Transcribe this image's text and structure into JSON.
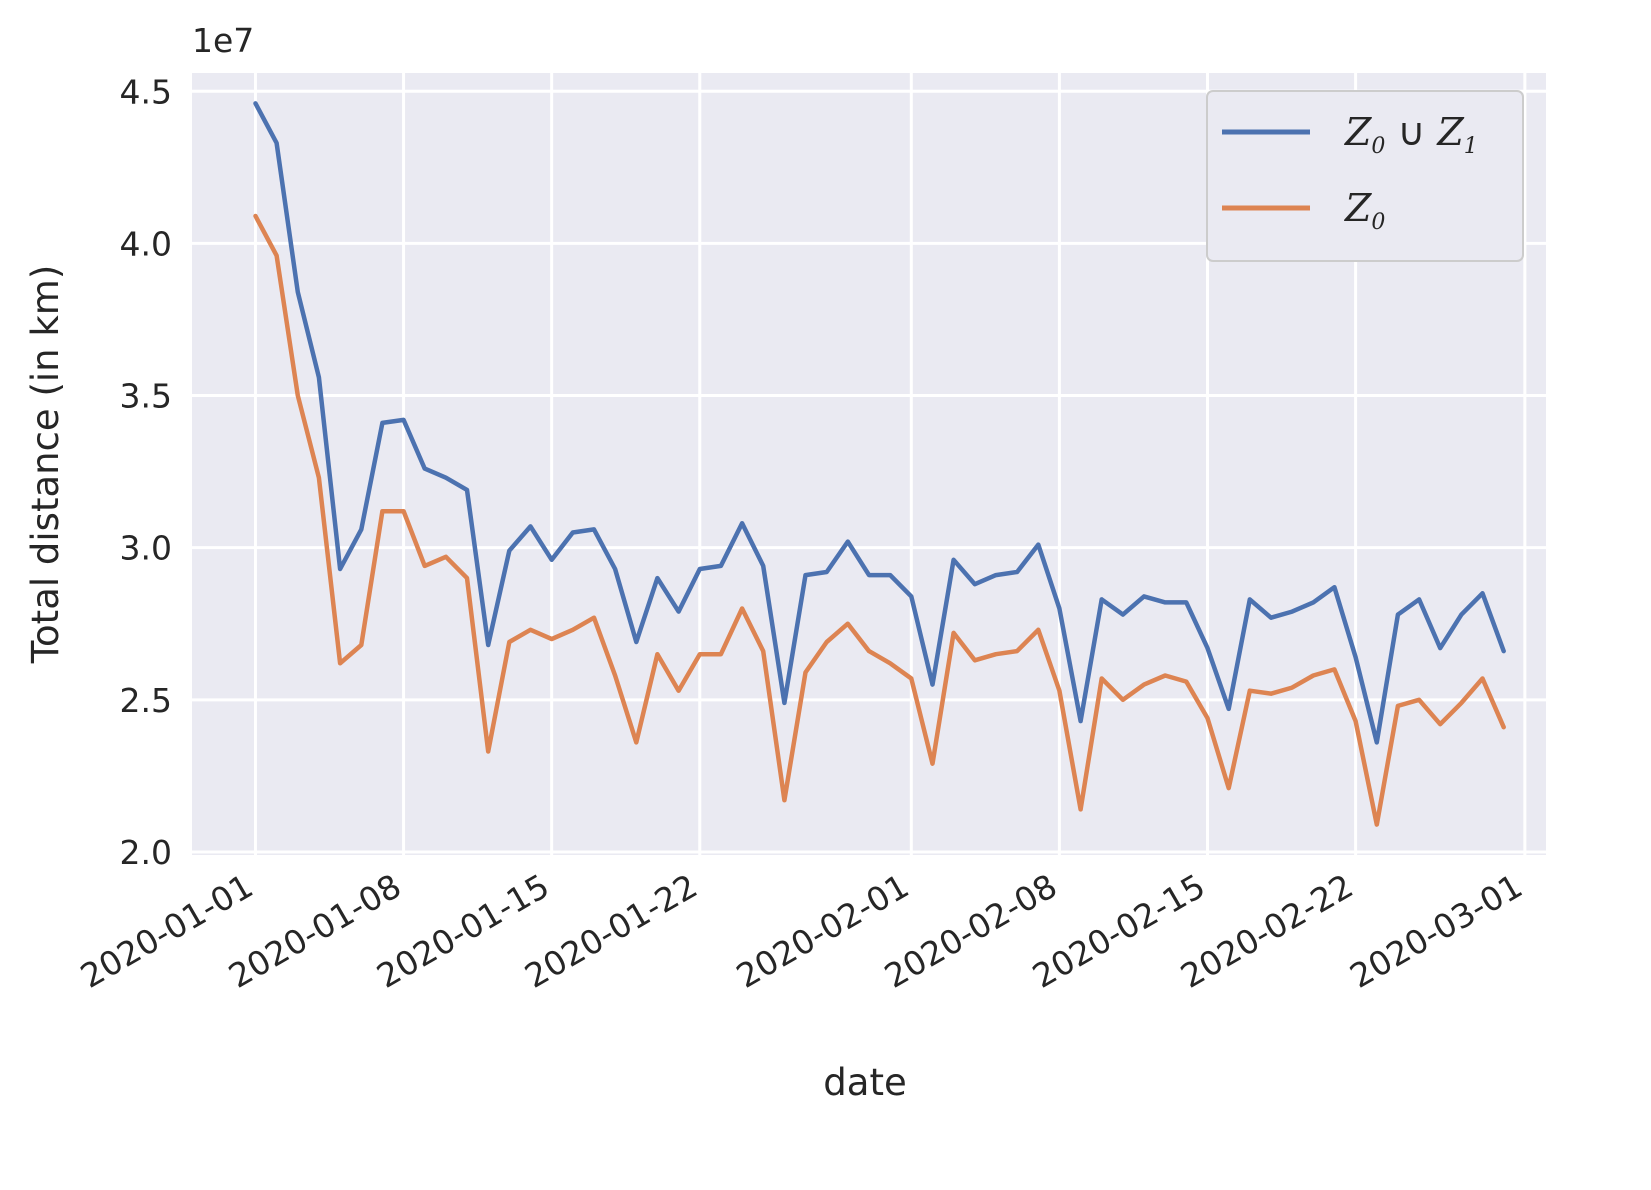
{
  "chart_data": {
    "type": "line",
    "xlabel": "date",
    "ylabel": "Total distance (in km)",
    "y_offset_text": "1e7",
    "x_start": "2020-01-01",
    "x_end": "2020-02-29",
    "xlim": [
      "2019-12-29",
      "2020-03-02"
    ],
    "ylim": [
      19900000.0,
      45600000.0
    ],
    "x_ticks": [
      "2020-01-01",
      "2020-01-08",
      "2020-01-15",
      "2020-01-22",
      "2020-02-01",
      "2020-02-08",
      "2020-02-15",
      "2020-02-22",
      "2020-03-01"
    ],
    "y_ticks": [
      {
        "value": 20000000.0,
        "label": "2.0"
      },
      {
        "value": 25000000.0,
        "label": "2.5"
      },
      {
        "value": 30000000.0,
        "label": "3.0"
      },
      {
        "value": 35000000.0,
        "label": "3.5"
      },
      {
        "value": 40000000.0,
        "label": "4.0"
      },
      {
        "value": 45000000.0,
        "label": "4.5"
      }
    ],
    "grid": true,
    "legend_position": "upper right",
    "series": [
      {
        "label_main": "Z",
        "label_sub": "0",
        "label_op": " ∪ ",
        "label_main2": "Z",
        "label_sub2": "1",
        "color": "#4c72b0",
        "values": [
          44.6,
          43.3,
          38.4,
          35.6,
          29.3,
          30.6,
          34.1,
          34.2,
          32.6,
          32.3,
          31.9,
          26.8,
          29.9,
          30.7,
          29.6,
          30.5,
          30.6,
          29.3,
          26.9,
          29.0,
          27.9,
          29.3,
          29.4,
          30.8,
          29.4,
          24.9,
          29.1,
          29.2,
          30.2,
          29.1,
          29.1,
          28.4,
          25.5,
          29.6,
          28.8,
          29.1,
          29.2,
          30.1,
          28.0,
          24.3,
          28.3,
          27.8,
          28.4,
          28.2,
          28.2,
          26.7,
          24.7,
          28.3,
          27.7,
          27.9,
          28.2,
          28.7,
          26.4,
          23.6,
          27.8,
          28.3,
          26.7,
          27.8,
          28.5,
          26.6
        ]
      },
      {
        "label_main": "Z",
        "label_sub": "0",
        "color": "#dd8452",
        "values": [
          40.9,
          39.6,
          35.0,
          32.3,
          26.2,
          26.8,
          31.2,
          31.2,
          29.4,
          29.7,
          29.0,
          23.3,
          26.9,
          27.3,
          27.0,
          27.3,
          27.7,
          25.8,
          23.6,
          26.5,
          25.3,
          26.5,
          26.5,
          28.0,
          26.6,
          21.7,
          25.9,
          26.9,
          27.5,
          26.6,
          26.2,
          25.7,
          22.9,
          27.2,
          26.3,
          26.5,
          26.6,
          27.3,
          25.3,
          21.4,
          25.7,
          25.0,
          25.5,
          25.8,
          25.6,
          24.4,
          22.1,
          25.3,
          25.2,
          25.4,
          25.8,
          26.0,
          24.3,
          20.9,
          24.8,
          25.0,
          24.2,
          24.9,
          25.7,
          24.1
        ]
      }
    ]
  }
}
